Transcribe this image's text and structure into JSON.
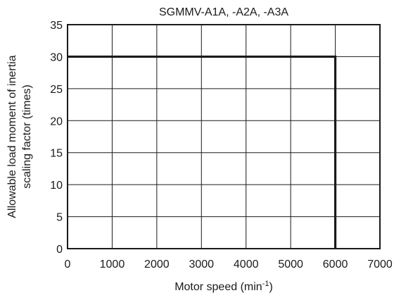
{
  "chart_data": {
    "type": "line",
    "title": "SGMMV-A1A, -A2A, -A3A",
    "xlabel_main": "Motor speed (min",
    "xlabel_sup": "-1",
    "xlabel_close": ")",
    "ylabel_line1": "Allowable load moment of inertia",
    "ylabel_line2": "scaling factor (times)",
    "xlim": [
      0,
      7000
    ],
    "ylim": [
      0,
      35
    ],
    "x_ticks": [
      0,
      1000,
      2000,
      3000,
      4000,
      5000,
      6000,
      7000
    ],
    "y_ticks": [
      0,
      5,
      10,
      15,
      20,
      25,
      30,
      35
    ],
    "grid": true,
    "series": [
      {
        "x": [
          0,
          6000,
          6000
        ],
        "y": [
          30,
          30,
          0
        ]
      }
    ]
  }
}
